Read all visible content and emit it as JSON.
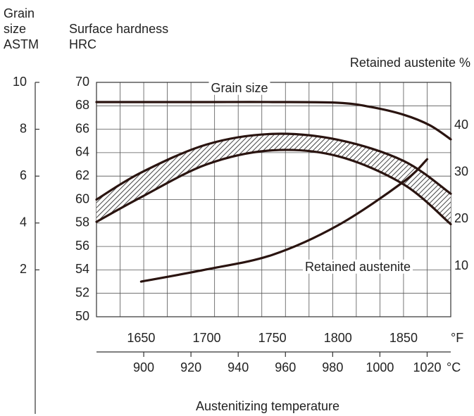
{
  "chart_data": {
    "type": "line",
    "title": "Austenitizing temperature",
    "y3_label": [
      "Grain",
      "size",
      "ASTM"
    ],
    "ylabel": [
      "Surface hardness",
      "HRC"
    ],
    "y2label": "Retained austenite %",
    "xlabel": "°F",
    "x2label": "°C",
    "annotations": [
      "Grain size",
      "Retained austenite"
    ],
    "xlim": [
      1616,
      1886
    ],
    "xticks": [
      1650,
      1700,
      1750,
      1800,
      1850
    ],
    "x2lim": [
      880,
      1030
    ],
    "x2ticks": [
      900,
      920,
      940,
      960,
      980,
      1000,
      1020
    ],
    "x2minor_ticks": [
      880,
      890,
      900,
      910,
      920,
      930,
      940,
      950,
      960,
      970,
      980,
      990,
      1000,
      1010,
      1020,
      1030
    ],
    "ylim": [
      50,
      70
    ],
    "yticks": [
      50,
      52,
      54,
      56,
      58,
      60,
      62,
      64,
      66,
      68,
      70
    ],
    "y2lim": [
      -0.8,
      49.2
    ],
    "y2ticks": [
      10,
      20,
      30,
      40
    ],
    "y3lim": [
      0,
      10
    ],
    "y3ticks": [
      2,
      4,
      6,
      8,
      10
    ],
    "grid": true,
    "hatch_between": [
      1,
      2
    ],
    "series": [
      {
        "name": "Grain size",
        "axis": "y3",
        "color": "#2a1410",
        "x": [
          1616,
          1650,
          1700,
          1750,
          1800,
          1825,
          1850,
          1870,
          1886
        ],
        "values": [
          9.16,
          9.16,
          9.16,
          9.16,
          9.13,
          8.95,
          8.62,
          8.17,
          7.57
        ]
      },
      {
        "name": "Hardness upper",
        "axis": "y",
        "color": "#2a1410",
        "x": [
          1616,
          1650,
          1700,
          1750,
          1800,
          1850,
          1886
        ],
        "values": [
          60.0,
          62.3,
          64.7,
          65.6,
          65.1,
          63.3,
          60.5
        ]
      },
      {
        "name": "Hardness lower",
        "axis": "y",
        "color": "#2a1410",
        "x": [
          1616,
          1650,
          1700,
          1750,
          1800,
          1850,
          1886
        ],
        "values": [
          58.1,
          60.2,
          63.0,
          64.2,
          63.7,
          61.3,
          57.9
        ]
      },
      {
        "name": "Retained austenite",
        "axis": "y2",
        "color": "#2a1410",
        "x": [
          1650,
          1700,
          1750,
          1800,
          1850,
          1868
        ],
        "values": [
          6.7,
          9.3,
          12.4,
          18.7,
          28.0,
          32.8
        ]
      }
    ]
  }
}
